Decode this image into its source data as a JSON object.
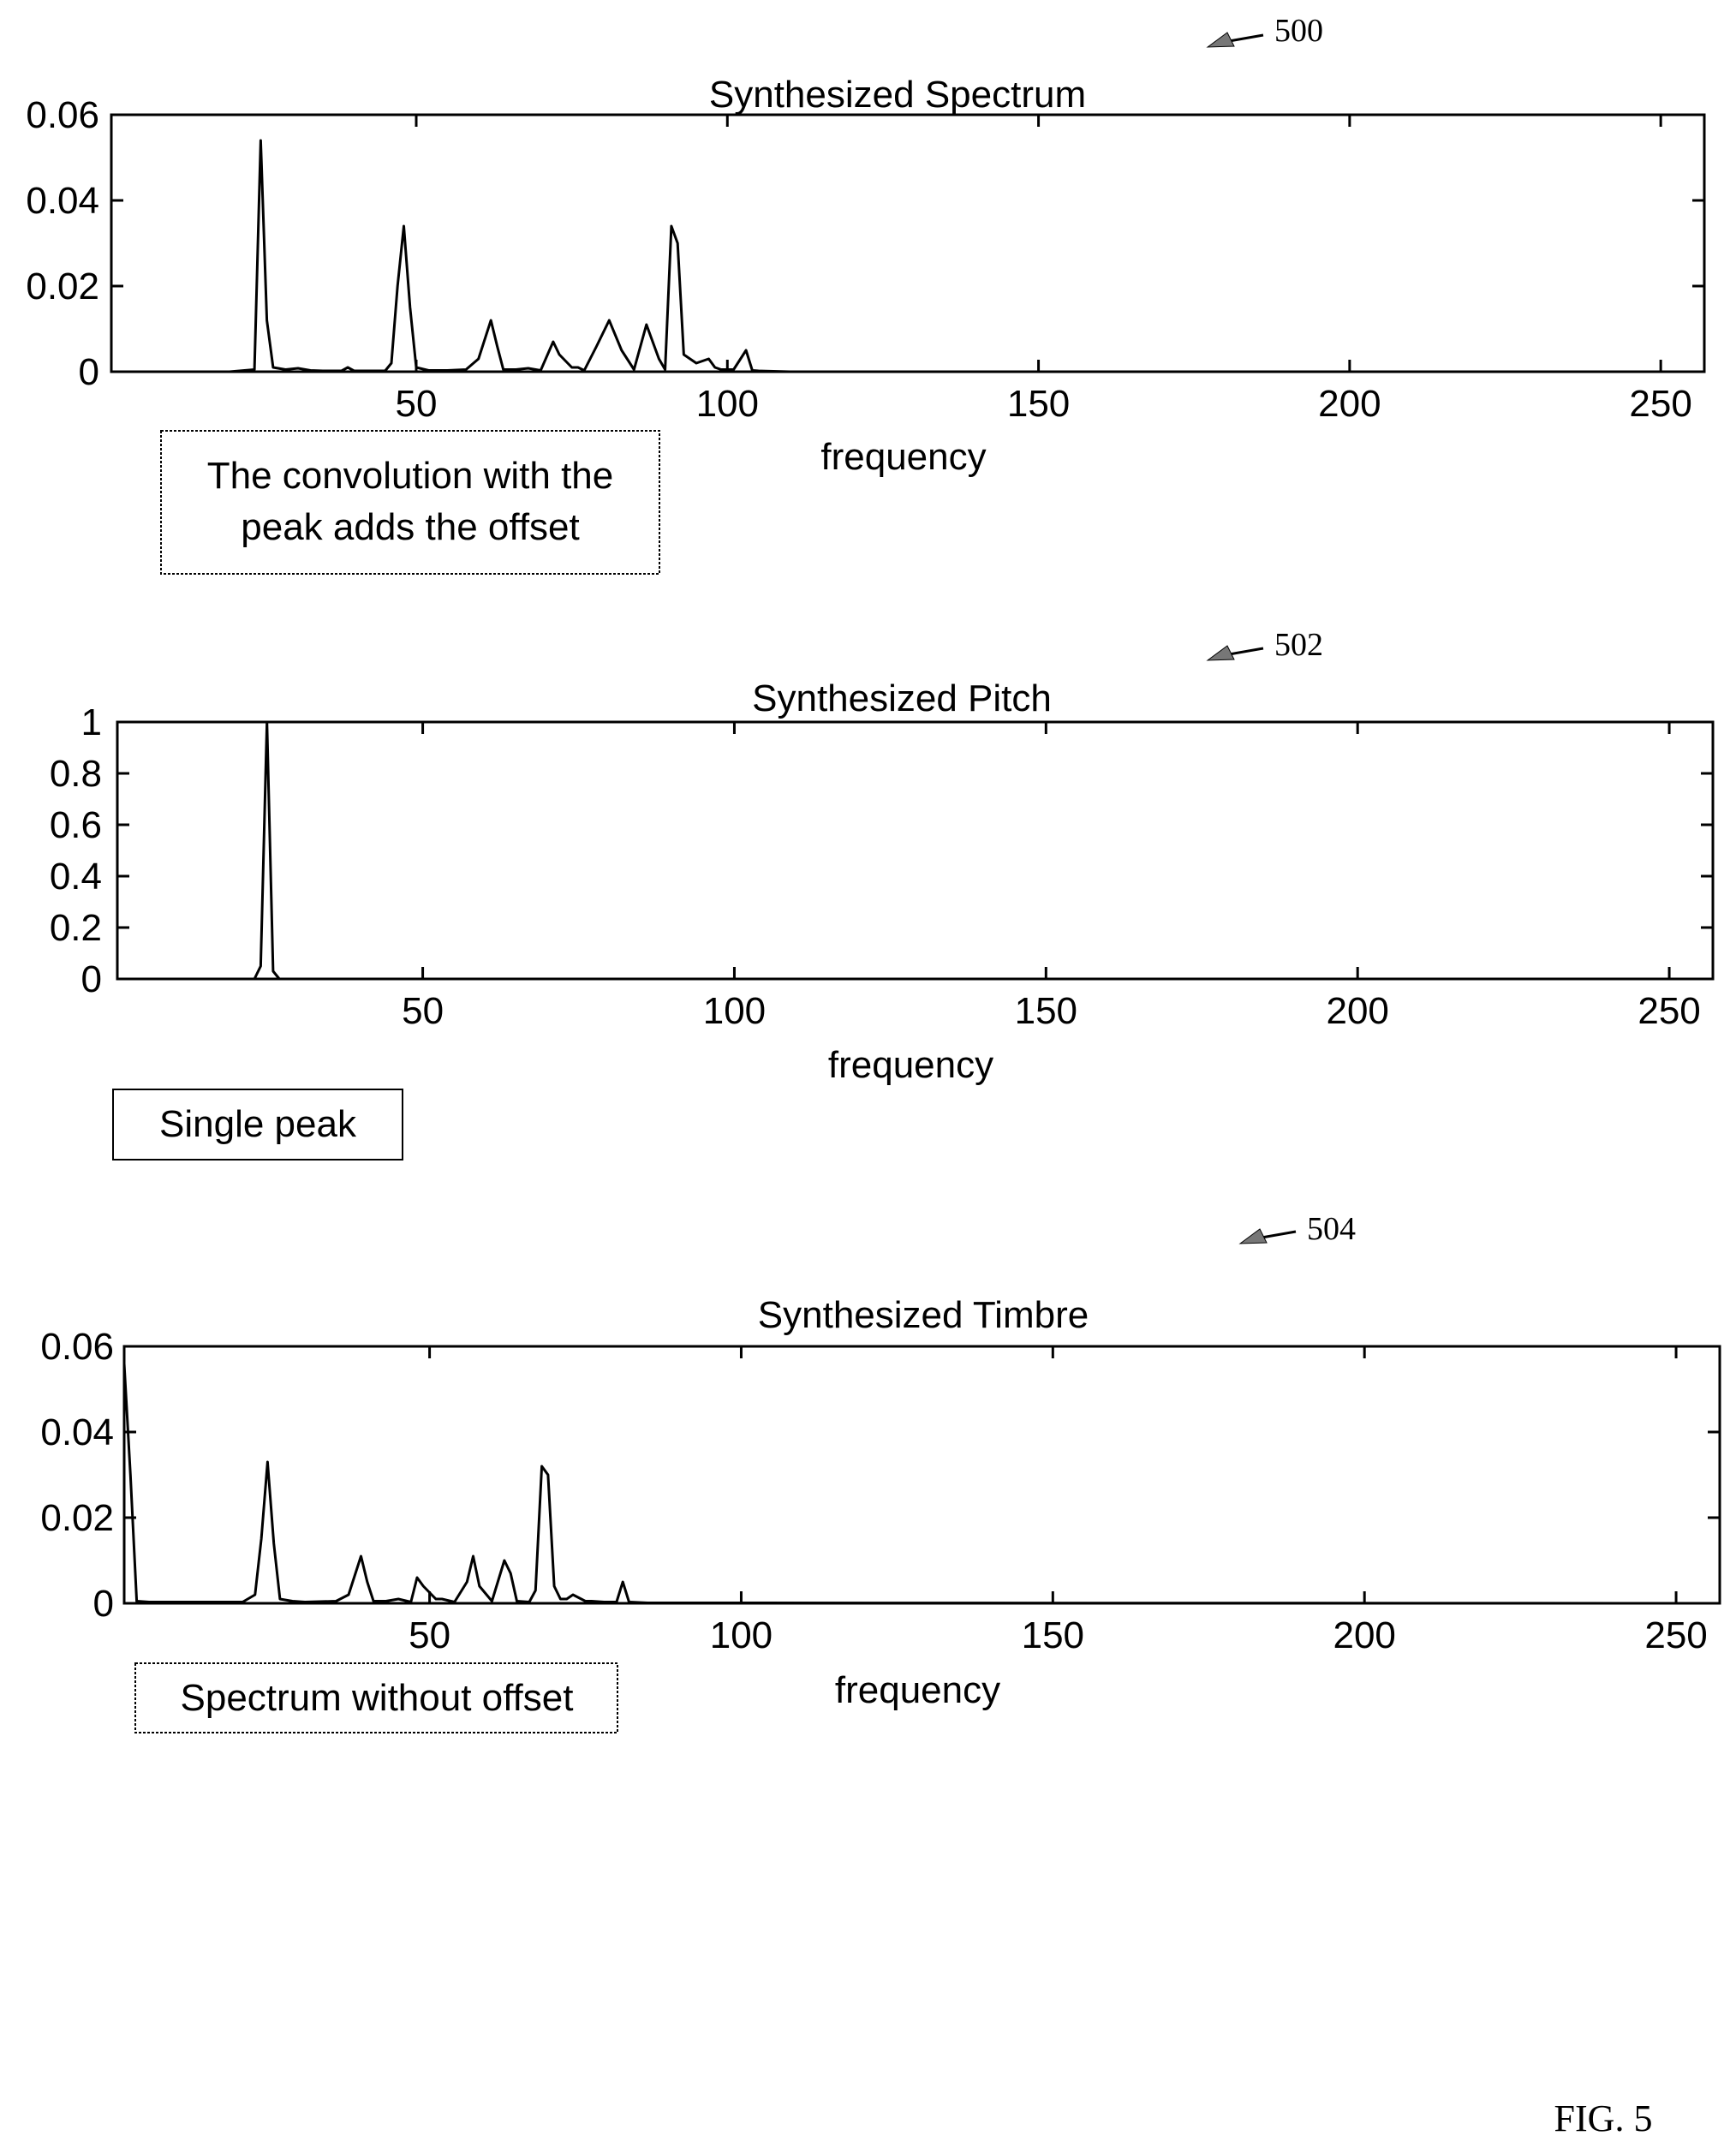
{
  "figure": {
    "label": "FIG. 5",
    "refs": [
      "500",
      "502",
      "504"
    ]
  },
  "chart_data": [
    {
      "type": "line",
      "ref": "500",
      "title": "Synthesized Spectrum",
      "xlabel": "frequency",
      "ylabel": "",
      "xlim": [
        1,
        257
      ],
      "ylim": [
        0,
        0.06
      ],
      "xticks": [
        50,
        100,
        150,
        200,
        250
      ],
      "xtick_labels": [
        "50",
        "100",
        "150",
        "200",
        "250"
      ],
      "yticks": [
        0,
        0.02,
        0.04,
        0.06
      ],
      "ytick_labels": [
        "0",
        "0.02",
        "0.04",
        "0.06"
      ],
      "annotation": "The convolution with the peak adds the offset",
      "annotation_lines": [
        "The convolution with the",
        "peak adds the offset"
      ],
      "grid": false,
      "series": [
        {
          "x": [
            1,
            20,
            24,
            25,
            26,
            27,
            29,
            31,
            33,
            35,
            38,
            39,
            40,
            42,
            45,
            46,
            47,
            48,
            49,
            50,
            52,
            55,
            58,
            60,
            62,
            63,
            64,
            66,
            68,
            70,
            72,
            73,
            75,
            76,
            77,
            79,
            81,
            83,
            85,
            87,
            89,
            90,
            91,
            92,
            93,
            95,
            97,
            98,
            99,
            101,
            103,
            104,
            105,
            110,
            257
          ],
          "y": [
            0,
            0,
            0.0005,
            0.054,
            0.012,
            0.001,
            0.0005,
            0.0008,
            0.0003,
            0.0002,
            0.0002,
            0.001,
            0.0002,
            0.0002,
            0.0002,
            0.002,
            0.02,
            0.034,
            0.015,
            0.001,
            0.0003,
            0.0003,
            0.0005,
            0.003,
            0.012,
            0.006,
            0.0005,
            0.0005,
            0.0008,
            0.0003,
            0.007,
            0.004,
            0.001,
            0.001,
            0.0003,
            0.006,
            0.012,
            0.005,
            0.0005,
            0.011,
            0.003,
            0.0005,
            0.034,
            0.03,
            0.004,
            0.002,
            0.003,
            0.001,
            0.0005,
            0.0005,
            0.005,
            0.0003,
            0.0002,
            0,
            0
          ]
        }
      ]
    },
    {
      "type": "line",
      "ref": "502",
      "title": "Synthesized Pitch",
      "xlabel": "frequency",
      "ylabel": "",
      "xlim": [
        1,
        257
      ],
      "ylim": [
        0,
        1
      ],
      "xticks": [
        50,
        100,
        150,
        200,
        250
      ],
      "xtick_labels": [
        "50",
        "100",
        "150",
        "200",
        "250"
      ],
      "yticks": [
        0,
        0.2,
        0.4,
        0.6,
        0.8,
        1
      ],
      "ytick_labels": [
        "0",
        "0.2",
        "0.4",
        "0.6",
        "0.8",
        "1"
      ],
      "annotation": "Single peak",
      "annotation_lines": [
        "Single peak"
      ],
      "grid": false,
      "series": [
        {
          "x": [
            1,
            23,
            24,
            25,
            26,
            27,
            257
          ],
          "y": [
            0,
            0,
            0.05,
            1,
            0.03,
            0,
            0
          ]
        }
      ]
    },
    {
      "type": "line",
      "ref": "504",
      "title": "Synthesized Timbre",
      "xlabel": "frequency",
      "ylabel": "",
      "xlim": [
        1,
        257
      ],
      "ylim": [
        0,
        0.06
      ],
      "xticks": [
        50,
        100,
        150,
        200,
        250
      ],
      "xtick_labels": [
        "50",
        "100",
        "150",
        "200",
        "250"
      ],
      "yticks": [
        0,
        0.02,
        0.04,
        0.06
      ],
      "ytick_labels": [
        "0",
        "0.02",
        "0.04",
        "0.06"
      ],
      "annotation": "Spectrum without offset",
      "annotation_lines": [
        "Spectrum without offset"
      ],
      "grid": false,
      "series": [
        {
          "x": [
            1,
            2,
            3,
            5,
            10,
            20,
            22,
            23,
            24,
            25,
            26,
            28,
            30,
            35,
            37,
            39,
            40,
            41,
            43,
            45,
            47,
            48,
            49,
            51,
            52,
            54,
            56,
            57,
            58,
            60,
            62,
            63,
            64,
            66,
            67,
            68,
            69,
            70,
            71,
            72,
            73,
            75,
            76,
            78,
            80,
            81,
            82,
            85,
            257
          ],
          "y": [
            0.056,
            0.03,
            0.0005,
            0.0003,
            0.0003,
            0.0003,
            0.002,
            0.015,
            0.033,
            0.014,
            0.001,
            0.0005,
            0.0003,
            0.0005,
            0.002,
            0.011,
            0.005,
            0.0005,
            0.0005,
            0.001,
            0.0003,
            0.006,
            0.004,
            0.001,
            0.001,
            0.0003,
            0.005,
            0.011,
            0.004,
            0.0005,
            0.01,
            0.007,
            0.0005,
            0.0003,
            0.003,
            0.032,
            0.03,
            0.004,
            0.001,
            0.001,
            0.002,
            0.0005,
            0.0005,
            0.0003,
            0.0003,
            0.005,
            0.0003,
            0.0001,
            0
          ]
        }
      ]
    }
  ]
}
